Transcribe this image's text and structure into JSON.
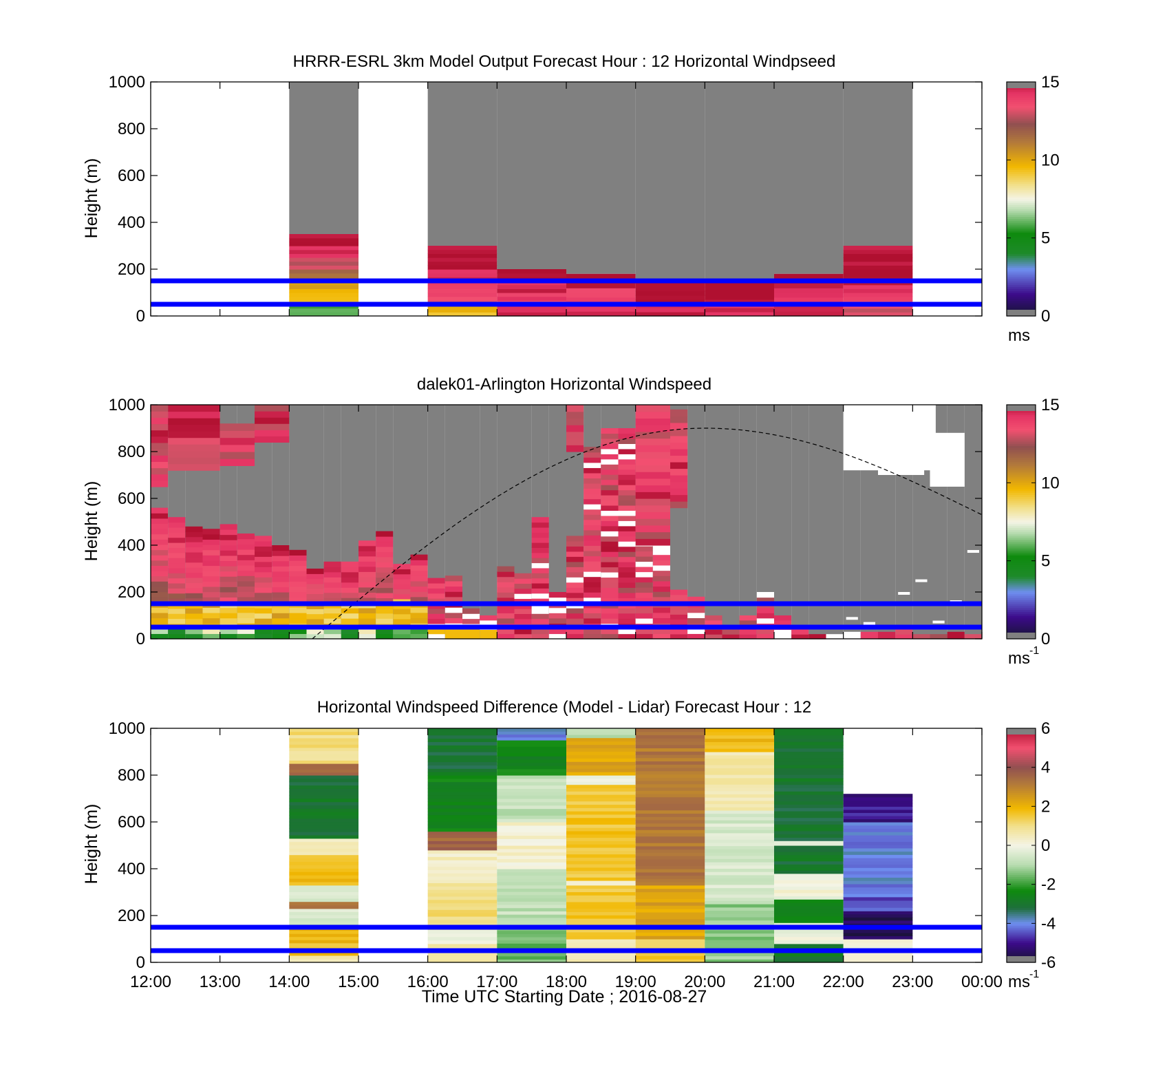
{
  "figure": {
    "xlabel": "Time UTC  Starting Date ; 2016-08-27",
    "x_ticks": [
      "12:00",
      "13:00",
      "14:00",
      "15:00",
      "16:00",
      "17:00",
      "18:00",
      "19:00",
      "20:00",
      "21:00",
      "22:00",
      "23:00",
      "00:00"
    ]
  },
  "chart_data": [
    {
      "type": "heatmap",
      "title": "HRRR-ESRL 3km Model Output   Forecast Hour : 12 Horizontal Windpseed",
      "ylabel": "Height (m)",
      "xlim": [
        "12:00",
        "00:00"
      ],
      "ylim": [
        0,
        1000
      ],
      "y_ticks": [
        0,
        200,
        400,
        600,
        800,
        1000
      ],
      "colorbar": {
        "ticks": [
          0,
          5,
          10,
          15
        ],
        "range": [
          0,
          15
        ],
        "unit": "ms"
      },
      "reference_lines_m": [
        50,
        150
      ],
      "reference_line_color": "#0000ff",
      "missing_color": "#808080",
      "columns": [
        {
          "start": "14:00",
          "end": "15:00",
          "top": 350,
          "bottom_to_top": [
            6,
            9.5,
            10,
            11.5,
            13,
            14.5,
            15
          ]
        },
        {
          "start": "16:00",
          "end": "17:00",
          "top": 300,
          "bottom_to_top": [
            9.5,
            13.5,
            14,
            14.5,
            15,
            15
          ]
        },
        {
          "start": "17:00",
          "end": "18:00",
          "top": 200,
          "bottom_to_top": [
            14.5,
            14,
            14.5,
            15
          ]
        },
        {
          "start": "18:00",
          "end": "19:00",
          "top": 180,
          "bottom_to_top": [
            14.5,
            14,
            15
          ]
        },
        {
          "start": "19:00",
          "end": "20:00",
          "top": 160,
          "bottom_to_top": [
            14.5,
            15,
            15
          ]
        },
        {
          "start": "20:00",
          "end": "21:00",
          "top": 160,
          "bottom_to_top": [
            14.5,
            15,
            15
          ]
        },
        {
          "start": "21:00",
          "end": "22:00",
          "top": 180,
          "bottom_to_top": [
            14.5,
            14.5,
            15
          ]
        },
        {
          "start": "22:00",
          "end": "23:00",
          "top": 300,
          "bottom_to_top": [
            13,
            14,
            14.5,
            15,
            15,
            15
          ]
        }
      ]
    },
    {
      "type": "heatmap",
      "title": "dalek01-Arlington  Horizontal Windspeed",
      "ylabel": "Height (m)",
      "xlim": [
        "12:00",
        "00:00"
      ],
      "ylim": [
        0,
        1000
      ],
      "y_ticks": [
        0,
        200,
        400,
        600,
        800,
        1000
      ],
      "colorbar": {
        "ticks": [
          0,
          5,
          10,
          15
        ],
        "range": [
          0,
          15
        ],
        "unit": "ms",
        "unit_exp": "-1"
      },
      "reference_lines_m": [
        50,
        150
      ],
      "reference_line_color": "#0000ff",
      "missing_color": "#808080",
      "curve": {
        "style": "dashed",
        "start": [
          "14:20",
          0
        ],
        "peak": [
          "20:00",
          900
        ],
        "end": [
          "00:00",
          530
        ]
      },
      "bins_minutes": 15,
      "profile_tops": [
        560,
        520,
        480,
        470,
        490,
        450,
        440,
        400,
        380,
        300,
        330,
        330,
        420,
        460,
        320,
        360,
        260,
        270,
        130,
        100,
        310,
        280,
        520,
        200,
        440,
        820,
        900,
        900,
        750,
        450,
        210,
        180,
        100,
        40,
        100,
        200,
        100,
        40,
        20,
        20,
        30,
        30,
        30,
        60,
        20,
        20,
        30,
        20
      ],
      "upper_strata": [
        {
          "start": "12:00",
          "end": "12:15",
          "from": 650,
          "to": 1000
        },
        {
          "start": "12:15",
          "end": "13:00",
          "from": 720,
          "to": 1000
        },
        {
          "start": "13:00",
          "end": "13:30",
          "from": 740,
          "to": 920
        },
        {
          "start": "13:30",
          "end": "14:00",
          "from": 840,
          "to": 1000
        },
        {
          "start": "18:00",
          "end": "18:15",
          "from": 800,
          "to": 1000
        },
        {
          "start": "19:00",
          "end": "19:30",
          "from": 400,
          "to": 1000
        },
        {
          "start": "19:30",
          "end": "19:45",
          "from": 560,
          "to": 980
        }
      ]
    },
    {
      "type": "heatmap",
      "title": "Horizontal Windspeed Difference (Model - Lidar) Forecast Hour : 12",
      "ylabel": "Height (m)",
      "xlim": [
        "12:00",
        "00:00"
      ],
      "ylim": [
        0,
        1000
      ],
      "y_ticks": [
        0,
        200,
        400,
        600,
        800,
        1000
      ],
      "colorbar": {
        "ticks": [
          -6,
          -4,
          -2,
          0,
          2,
          4,
          6
        ],
        "range": [
          -6,
          6
        ],
        "unit": "ms",
        "unit_exp": "-1"
      },
      "reference_lines_m": [
        50,
        150
      ],
      "reference_line_color": "#0000ff",
      "columns": [
        {
          "start": "14:00",
          "end": "15:00",
          "top": 1000,
          "layers": [
            [
              0,
              30,
              0.5
            ],
            [
              30,
              150,
              1.8
            ],
            [
              150,
              230,
              -0.5
            ],
            [
              230,
              260,
              3.5
            ],
            [
              260,
              330,
              -0.3
            ],
            [
              330,
              460,
              1.8
            ],
            [
              460,
              530,
              0.5
            ],
            [
              530,
              800,
              -3
            ],
            [
              800,
              850,
              3.5
            ],
            [
              850,
              1000,
              1
            ]
          ]
        },
        {
          "start": "16:00",
          "end": "17:00",
          "top": 1000,
          "layers": [
            [
              0,
              80,
              0.8
            ],
            [
              80,
              140,
              0
            ],
            [
              140,
              340,
              1
            ],
            [
              340,
              480,
              0.4
            ],
            [
              480,
              560,
              3.5
            ],
            [
              560,
              800,
              -2.5
            ],
            [
              800,
              1000,
              -3
            ]
          ]
        },
        {
          "start": "17:00",
          "end": "18:00",
          "top": 1000,
          "layers": [
            [
              0,
              150,
              -1.6
            ],
            [
              150,
              400,
              -0.8
            ],
            [
              400,
              600,
              0.3
            ],
            [
              600,
              800,
              -0.8
            ],
            [
              800,
              950,
              -2.5
            ],
            [
              950,
              1000,
              -4
            ]
          ]
        },
        {
          "start": "18:00",
          "end": "19:00",
          "top": 1000,
          "layers": [
            [
              0,
              100,
              0.4
            ],
            [
              100,
              160,
              1.5
            ],
            [
              160,
              330,
              1.6
            ],
            [
              330,
              350,
              0
            ],
            [
              350,
              760,
              1.6
            ],
            [
              760,
              800,
              0
            ],
            [
              800,
              960,
              2.3
            ],
            [
              960,
              1000,
              -1
            ]
          ]
        },
        {
          "start": "19:00",
          "end": "20:00",
          "top": 1000,
          "layers": [
            [
              0,
              100,
              1.5
            ],
            [
              100,
              330,
              2.3
            ],
            [
              330,
              1000,
              3.2
            ]
          ]
        },
        {
          "start": "20:00",
          "end": "21:00",
          "top": 1000,
          "layers": [
            [
              0,
              250,
              -1.3
            ],
            [
              250,
              650,
              -0.5
            ],
            [
              650,
              900,
              0.6
            ],
            [
              900,
              1000,
              1.9
            ]
          ]
        },
        {
          "start": "21:00",
          "end": "22:00",
          "top": 1000,
          "layers": [
            [
              0,
              80,
              -2.8
            ],
            [
              80,
              170,
              0
            ],
            [
              170,
              270,
              -2.5
            ],
            [
              270,
              380,
              0
            ],
            [
              380,
              500,
              -3
            ],
            [
              500,
              520,
              0
            ],
            [
              520,
              1000,
              -3
            ]
          ]
        },
        {
          "start": "22:00",
          "end": "23:00",
          "top": 720,
          "layers": [
            [
              0,
              100,
              0
            ],
            [
              100,
              220,
              -5.5
            ],
            [
              220,
              280,
              -4.4
            ],
            [
              280,
              600,
              -4
            ],
            [
              600,
              720,
              -5
            ]
          ]
        }
      ]
    }
  ]
}
